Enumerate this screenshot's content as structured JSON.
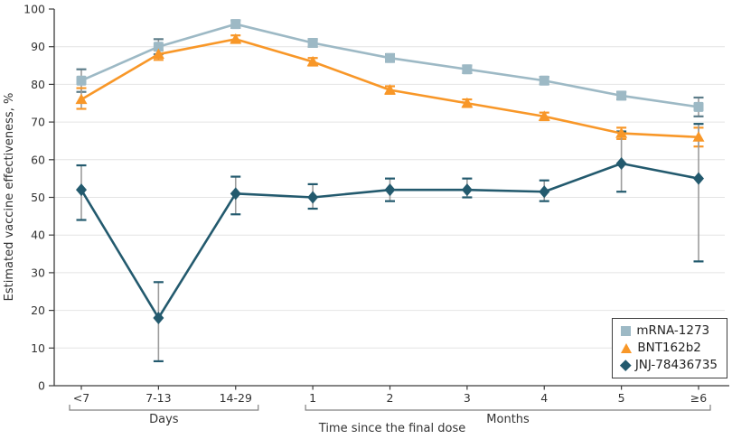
{
  "chart_data": {
    "type": "line",
    "title": "",
    "ylabel": "Estimated vaccine effectiveness, %",
    "xlabel": "Time since the final dose",
    "ylim": [
      0,
      100
    ],
    "ytick_step": 10,
    "grid": "horizontal",
    "legend_position": "bottom-right",
    "categories": [
      "<7",
      "7-13",
      "14-29",
      "1",
      "2",
      "3",
      "4",
      "5",
      "≥6"
    ],
    "x_groups": [
      {
        "label": "Days",
        "from": 0,
        "to": 2
      },
      {
        "label": "Months",
        "from": 3,
        "to": 8
      }
    ],
    "error_bar_stem_color": "#9c9c9c",
    "gridline_color": "#e4e4e4",
    "axis_color": "#3c3c3c",
    "series": [
      {
        "name": "mRNA-1273",
        "marker": "square",
        "color": "#9db9c5",
        "cap_color": "#5d7d8a",
        "values": [
          81,
          90,
          96,
          91,
          87,
          84,
          81,
          77,
          74
        ],
        "ci_low": [
          78,
          88,
          95,
          90,
          86,
          83,
          80,
          76,
          71.5
        ],
        "ci_high": [
          84,
          92,
          97,
          92,
          88,
          85,
          82,
          78,
          76.5
        ]
      },
      {
        "name": "BNT162b2",
        "marker": "triangle",
        "color": "#f89728",
        "cap_color": "#f89728",
        "values": [
          76,
          88,
          92,
          86,
          78.5,
          75,
          71.5,
          67,
          66
        ],
        "ci_low": [
          73.5,
          86.5,
          91,
          85,
          77.5,
          74,
          70.5,
          65.5,
          63.5
        ],
        "ci_high": [
          79,
          89,
          93,
          87,
          79.5,
          76,
          72.5,
          68.5,
          68.5
        ]
      },
      {
        "name": "JNJ-78436735",
        "marker": "diamond",
        "color": "#235a6e",
        "cap_color": "#235a6e",
        "values": [
          52,
          18,
          51,
          50,
          52,
          52,
          51.5,
          59,
          55
        ],
        "ci_low": [
          44,
          6.5,
          45.5,
          47,
          49,
          50,
          49,
          51.5,
          33
        ],
        "ci_high": [
          58.5,
          27.5,
          55.5,
          53.5,
          55,
          55,
          54.5,
          67.5,
          69.5
        ]
      }
    ]
  }
}
